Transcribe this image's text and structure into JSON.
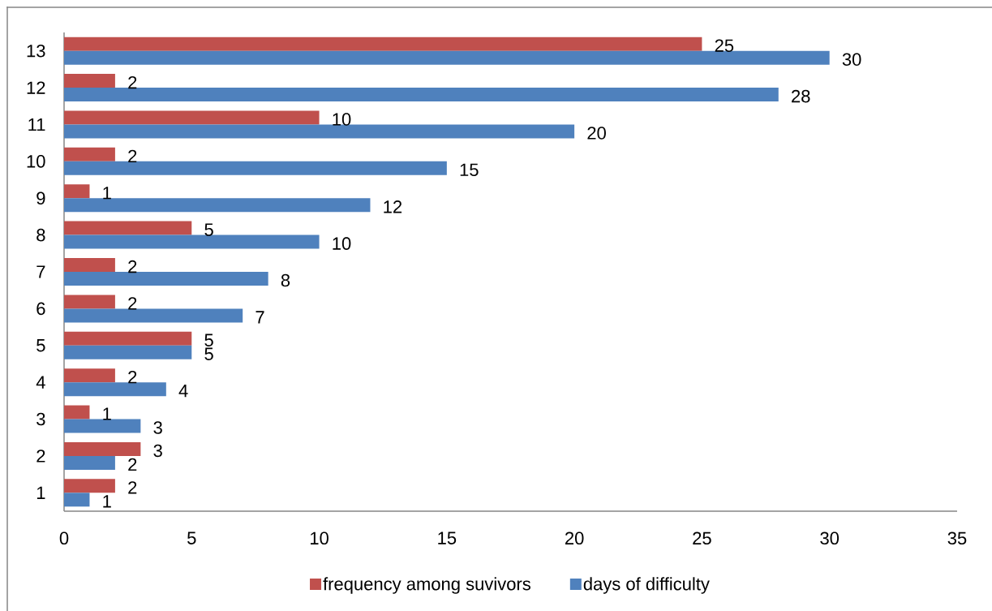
{
  "chart_data": {
    "type": "bar",
    "orientation": "horizontal",
    "categories": [
      "13",
      "12",
      "11",
      "10",
      "9",
      "8",
      "7",
      "6",
      "5",
      "4",
      "3",
      "2",
      "1"
    ],
    "series": [
      {
        "name": "frequency among suvivors",
        "color": "#c0504d",
        "values": [
          25,
          2,
          10,
          2,
          1,
          5,
          2,
          2,
          5,
          2,
          1,
          3,
          2
        ]
      },
      {
        "name": "days of difficulty",
        "color": "#4f81bd",
        "values": [
          30,
          28,
          20,
          15,
          12,
          10,
          8,
          7,
          5,
          4,
          3,
          2,
          1
        ]
      }
    ],
    "xlim": [
      0,
      35
    ],
    "xticks": [
      0,
      5,
      10,
      15,
      20,
      25,
      30,
      35
    ],
    "data_labels": true,
    "legend": "bottom"
  }
}
